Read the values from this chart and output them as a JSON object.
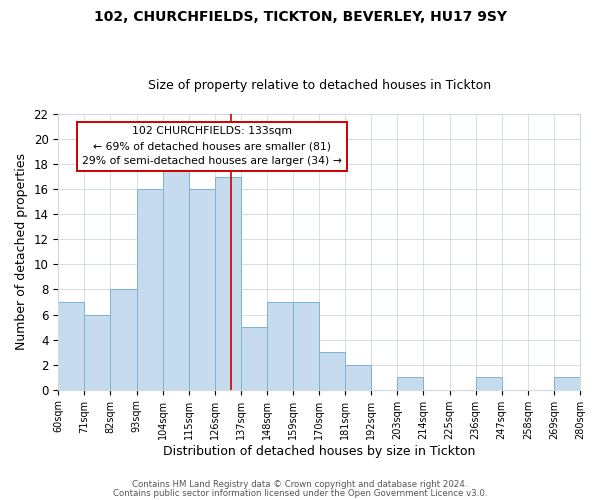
{
  "title": "102, CHURCHFIELDS, TICKTON, BEVERLEY, HU17 9SY",
  "subtitle": "Size of property relative to detached houses in Tickton",
  "xlabel": "Distribution of detached houses by size in Tickton",
  "ylabel": "Number of detached properties",
  "bar_left_edges": [
    60,
    71,
    82,
    93,
    104,
    115,
    126,
    137,
    148,
    159,
    170,
    181,
    192,
    203,
    214,
    225,
    236,
    247,
    258,
    269
  ],
  "bar_right_edges": [
    71,
    82,
    93,
    104,
    115,
    126,
    137,
    148,
    159,
    170,
    181,
    192,
    203,
    214,
    225,
    236,
    247,
    258,
    269,
    280
  ],
  "bar_heights": [
    7,
    6,
    8,
    16,
    18,
    16,
    17,
    5,
    7,
    7,
    3,
    2,
    0,
    1,
    0,
    0,
    1,
    0,
    0,
    1
  ],
  "bar_color": "#c6dcee",
  "bar_edgecolor": "#7ab4d4",
  "vline_x": 133,
  "vline_color": "#cc0000",
  "annotation_lines": [
    "102 CHURCHFIELDS: 133sqm",
    "← 69% of detached houses are smaller (81)",
    "29% of semi-detached houses are larger (34) →"
  ],
  "annotation_box_color": "#ffffff",
  "annotation_box_edgecolor": "#cc0000",
  "xlim": [
    60,
    280
  ],
  "ylim": [
    0,
    22
  ],
  "tick_positions": [
    60,
    71,
    82,
    93,
    104,
    115,
    126,
    137,
    148,
    159,
    170,
    181,
    192,
    203,
    214,
    225,
    236,
    247,
    258,
    269,
    280
  ],
  "tick_labels": [
    "60sqm",
    "71sqm",
    "82sqm",
    "93sqm",
    "104sqm",
    "115sqm",
    "126sqm",
    "137sqm",
    "148sqm",
    "159sqm",
    "170sqm",
    "181sqm",
    "192sqm",
    "203sqm",
    "214sqm",
    "225sqm",
    "236sqm",
    "247sqm",
    "258sqm",
    "269sqm",
    "280sqm"
  ],
  "yticks": [
    0,
    2,
    4,
    6,
    8,
    10,
    12,
    14,
    16,
    18,
    20,
    22
  ],
  "footer_line1": "Contains HM Land Registry data © Crown copyright and database right 2024.",
  "footer_line2": "Contains public sector information licensed under the Open Government Licence v3.0.",
  "bg_color": "#ffffff",
  "grid_color": "#d0d8e0",
  "title_fontsize": 10,
  "subtitle_fontsize": 9
}
